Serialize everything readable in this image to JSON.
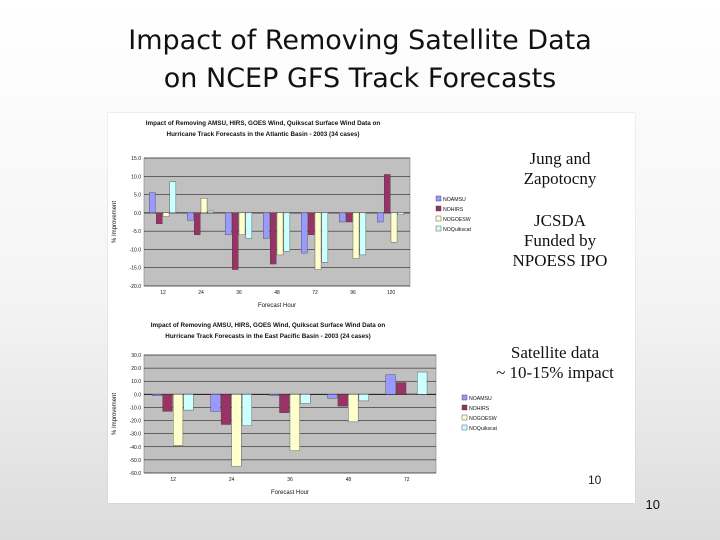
{
  "slide": {
    "title_line1": "Impact of Removing Satellite Data",
    "title_line2": "on NCEP GFS Track Forecasts",
    "author_line1": "Jung and",
    "author_line2": "Zapotocny",
    "funding_line1": "JCSDA",
    "funding_line2": "Funded by",
    "funding_line3": "NPOESS IPO",
    "note_line1": "Satellite data",
    "note_line2": "~ 10-15% impact",
    "inner_page_number": "10",
    "slide_number": "10"
  },
  "chart_data": [
    {
      "type": "bar",
      "title_line1": "Impact of Removing AMSU, HIRS, GOES Wind, Quikscat Surface Wind Data on",
      "title_line2": "Hurricane Track Forecasts in the Atlantic Basin - 2003 (34 cases)",
      "xlabel": "Forecast Hour",
      "ylabel": "% Improvement",
      "categories": [
        "12",
        "24",
        "36",
        "48",
        "72",
        "96",
        "120"
      ],
      "yticks": [
        "15.0",
        "10.0",
        "5.0",
        "0.0",
        "-5.0",
        "-10.0",
        "-15.0",
        "-20.0"
      ],
      "ylim": [
        -20,
        15
      ],
      "grid": true,
      "legend_position": "right",
      "series": [
        {
          "name": "NOAMSU",
          "color": "#9999ff",
          "values": [
            5.5,
            -2,
            -6,
            -7,
            -11,
            -2.5,
            -2.5
          ]
        },
        {
          "name": "NOHIRS",
          "color": "#993366",
          "values": [
            -3,
            -6,
            -15.5,
            -14,
            -6,
            -2.5,
            10.5
          ]
        },
        {
          "name": "NOGOESW",
          "color": "#ffffcc",
          "values": [
            -1,
            4,
            -6,
            -11.5,
            -15.5,
            -12.5,
            -8
          ]
        },
        {
          "name": "NOQuikscat",
          "color": "#ccffff",
          "values": [
            8.5,
            0.5,
            -7,
            -10.5,
            -13.5,
            -11.5,
            -0.5
          ]
        }
      ]
    },
    {
      "type": "bar",
      "title_line1": "Impact of Removing AMSU, HIRS, GOES Wind, Quikscat Surface Wind Data on",
      "title_line2": "Hurricane Track Forecasts in the East Pacific Basin - 2003 (24 cases)",
      "xlabel": "Forecast Hour",
      "ylabel": "% Improvement",
      "categories": [
        "12",
        "24",
        "36",
        "48",
        "72"
      ],
      "yticks": [
        "30.0",
        "20.0",
        "10.0",
        "0.0",
        "-10.0",
        "-20.0",
        "-30.0",
        "-40.0",
        "-50.0",
        "-60.0"
      ],
      "ylim": [
        -60,
        30
      ],
      "grid": true,
      "legend_position": "right",
      "series": [
        {
          "name": "NOAMSU",
          "color": "#9999ff",
          "values": [
            -1,
            -13,
            -1,
            -3,
            15
          ]
        },
        {
          "name": "NOHIRS",
          "color": "#993366",
          "values": [
            -13,
            -23,
            -14,
            -9,
            9
          ]
        },
        {
          "name": "NOGOESW",
          "color": "#ffffcc",
          "values": [
            -39,
            -55,
            -43,
            -21,
            0.5
          ]
        },
        {
          "name": "NOQuikscat",
          "color": "#ccffff",
          "values": [
            -12,
            -24,
            -7,
            -5,
            17
          ]
        }
      ]
    }
  ]
}
